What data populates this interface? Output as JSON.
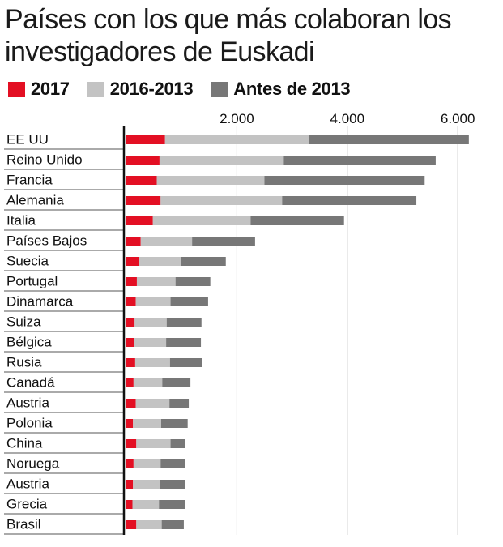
{
  "title_lines": [
    "Países con los que más colaboran los",
    "investigadores de Euskadi"
  ],
  "colors": {
    "2017": "#e30f23",
    "2016-2013": "#c3c3c3",
    "antes": "#777777",
    "gridline": "#b8b8b8",
    "axis": "#111111",
    "row_separator": "#555555"
  },
  "chart_data": {
    "type": "bar",
    "orientation": "horizontal",
    "stacked": true,
    "title": "Países con los que más colaboran los investigadores de Euskadi",
    "xlabel": "",
    "ylabel": "",
    "xlim": [
      0,
      6400
    ],
    "x_ticks": [
      2000,
      4000,
      6000
    ],
    "x_tick_labels": [
      "2.000",
      "4.000",
      "6.000"
    ],
    "x_axis_position": "top",
    "grid": true,
    "legend_position": "top",
    "categories": [
      "EE UU",
      "Reino Unido",
      "Francia",
      "Alemania",
      "Italia",
      "Países Bajos",
      "Suecia",
      "Portugal",
      "Dinamarca",
      "Suiza",
      "Bélgica",
      "Rusia",
      "Canadá",
      "Austria",
      "Polonia",
      "China",
      "Noruega",
      "Austria",
      "Grecia",
      "Brasil"
    ],
    "series": [
      {
        "name": "2017",
        "color": "#e30f23",
        "values": [
          700,
          600,
          550,
          620,
          480,
          260,
          230,
          190,
          170,
          150,
          140,
          160,
          130,
          170,
          120,
          180,
          130,
          120,
          110,
          180
        ]
      },
      {
        "name": "2016-2013",
        "color": "#c3c3c3",
        "values": [
          2600,
          2250,
          1950,
          2200,
          1770,
          930,
          760,
          700,
          630,
          580,
          580,
          630,
          520,
          610,
          510,
          620,
          490,
          490,
          480,
          460
        ]
      },
      {
        "name": "Antes de 2013",
        "color": "#777777",
        "values": [
          2900,
          2750,
          2900,
          2430,
          1690,
          1140,
          810,
          630,
          680,
          630,
          630,
          580,
          510,
          350,
          480,
          260,
          450,
          450,
          480,
          400
        ]
      }
    ]
  }
}
